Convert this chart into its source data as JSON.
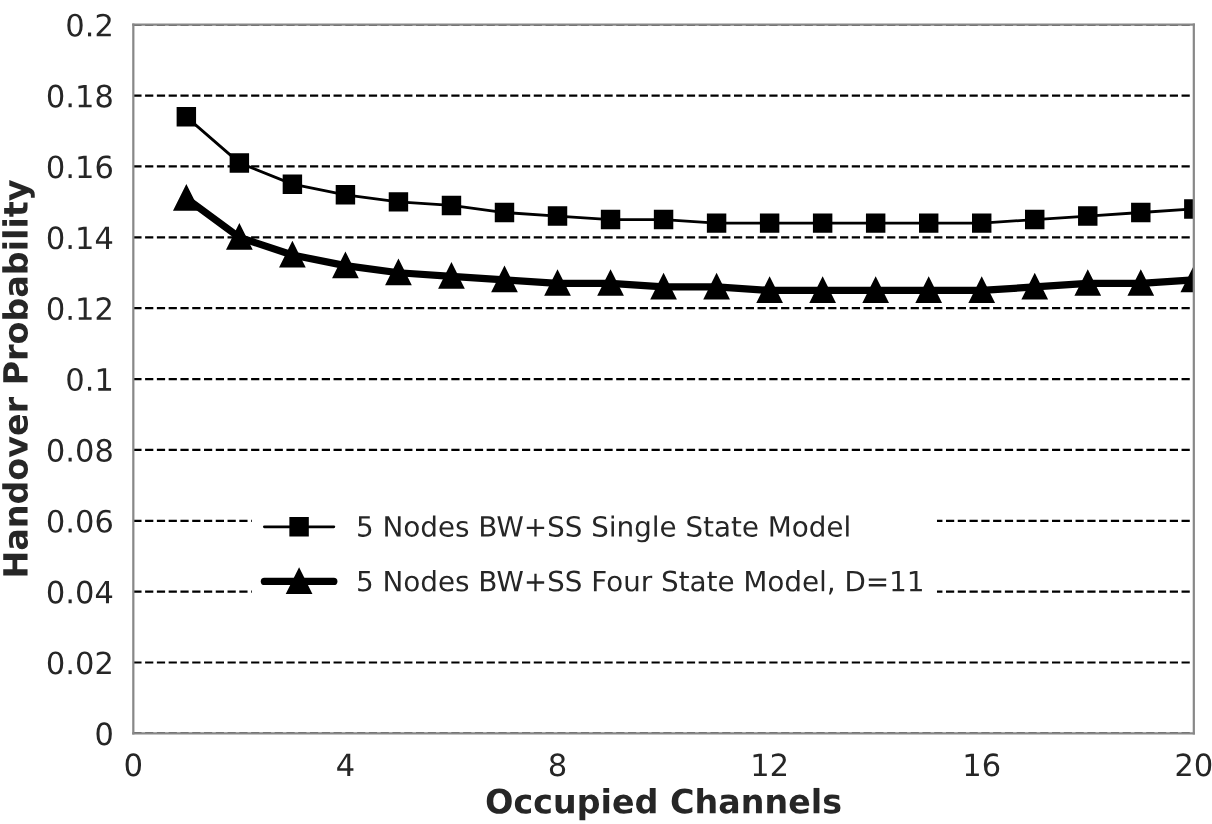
{
  "chart_data": {
    "type": "line",
    "xlabel": "Occupied Channels",
    "ylabel": "Handover Probability",
    "x": [
      1,
      2,
      3,
      4,
      5,
      6,
      7,
      8,
      9,
      10,
      11,
      12,
      13,
      14,
      15,
      16,
      17,
      18,
      19,
      20
    ],
    "series": [
      {
        "name": "5 Nodes BW+SS Single State Model",
        "color": "#000000",
        "marker": "square",
        "values": [
          0.174,
          0.161,
          0.155,
          0.152,
          0.15,
          0.149,
          0.147,
          0.146,
          0.145,
          0.145,
          0.144,
          0.144,
          0.144,
          0.144,
          0.144,
          0.144,
          0.145,
          0.146,
          0.147,
          0.148
        ]
      },
      {
        "name": "5 Nodes BW+SS Four State Model, D=11",
        "color": "#000000",
        "marker": "triangle",
        "values": [
          0.151,
          0.14,
          0.135,
          0.132,
          0.13,
          0.129,
          0.128,
          0.127,
          0.127,
          0.126,
          0.126,
          0.125,
          0.125,
          0.125,
          0.125,
          0.125,
          0.126,
          0.127,
          0.127,
          0.128
        ]
      }
    ],
    "xlim": [
      0,
      20
    ],
    "xticks": [
      0,
      4,
      8,
      12,
      16,
      20
    ],
    "ylim": [
      0,
      0.2
    ],
    "yticks": [
      0,
      0.02,
      0.04,
      0.06,
      0.08,
      0.1,
      0.12,
      0.14,
      0.16,
      0.18,
      0.2
    ],
    "grid": "y",
    "legend": "left",
    "line_style": "solid"
  }
}
